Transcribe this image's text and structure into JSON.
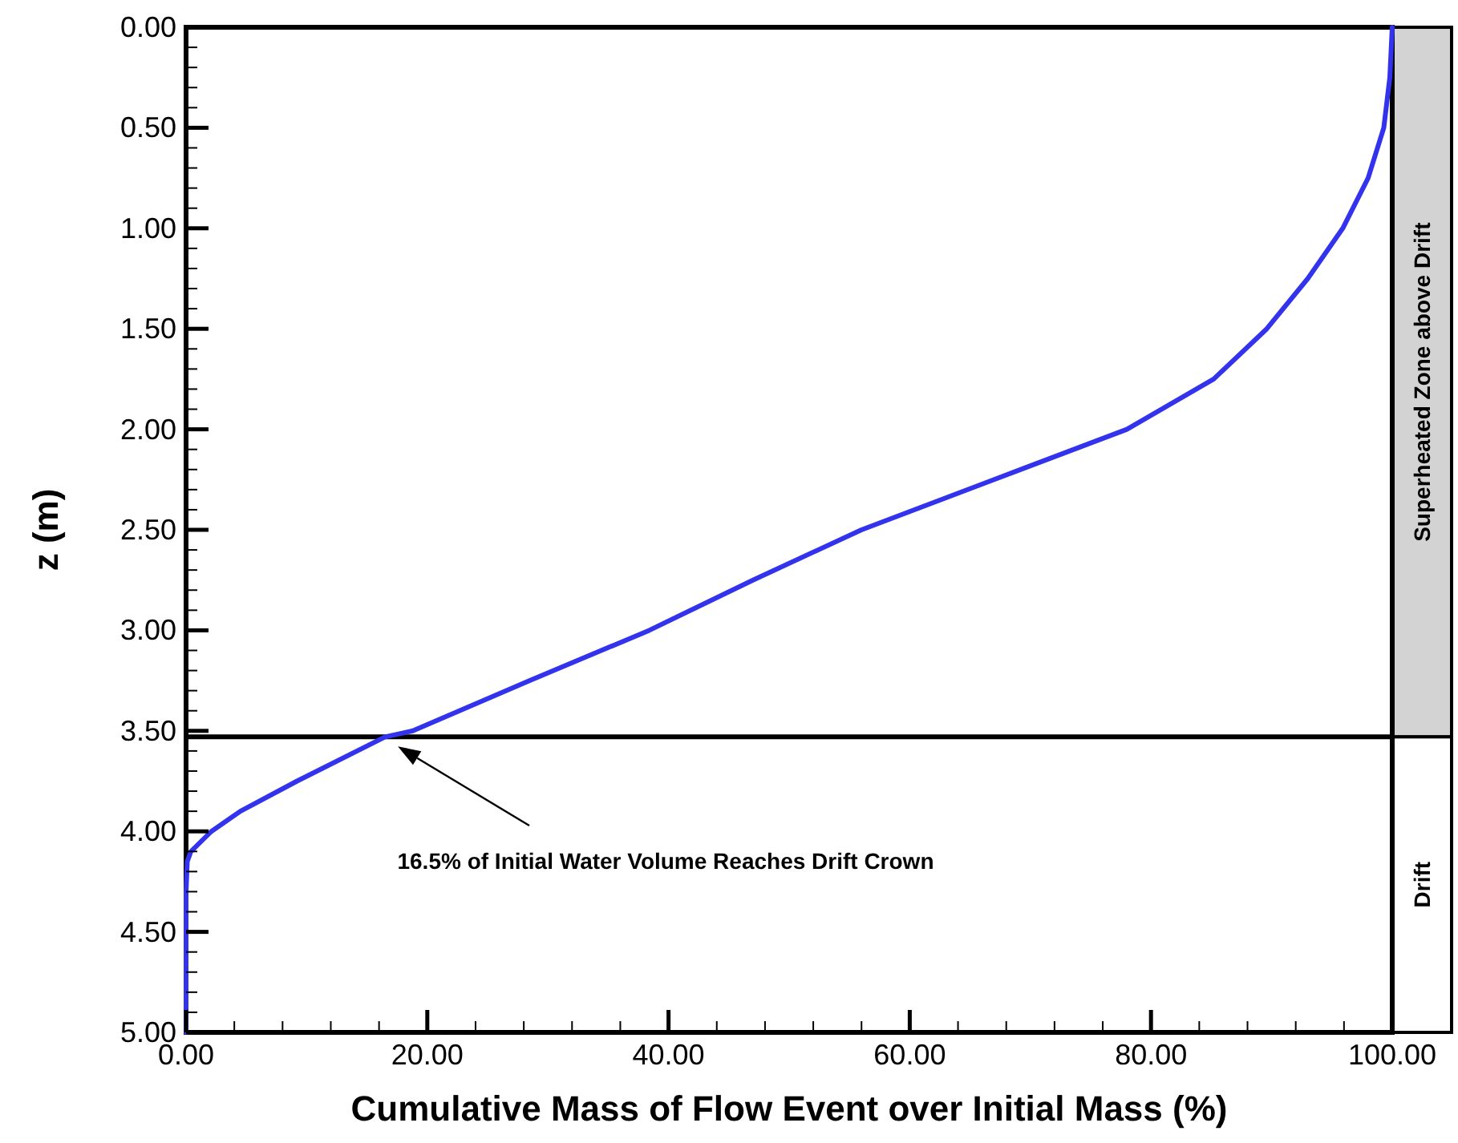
{
  "chart_data": {
    "type": "line",
    "xlabel": "Cumulative Mass of Flow Event over Initial Mass (%)",
    "ylabel": "z (m)",
    "series": [
      {
        "color": "#3333ee",
        "x": [
          100,
          99.8,
          99.3,
          98,
          95.9,
          93,
          89.6,
          85.2,
          78,
          67,
          56,
          47,
          38.4,
          28.5,
          18.8,
          16.5,
          9.2,
          4.5,
          2.1,
          0.4,
          0.1,
          0,
          0
        ],
        "values": [
          0,
          0.25,
          0.5,
          0.75,
          1,
          1.25,
          1.5,
          1.75,
          2,
          2.25,
          2.5,
          2.75,
          3,
          3.25,
          3.5,
          3.53,
          3.75,
          3.9,
          4,
          4.1,
          4.15,
          4.3,
          5
        ]
      }
    ],
    "xlim": [
      0,
      100
    ],
    "ylim": [
      5,
      0
    ],
    "xticks": [
      {
        "value": 0,
        "label": "0.00"
      },
      {
        "value": 4,
        "label": null
      },
      {
        "value": 8,
        "label": null
      },
      {
        "value": 12,
        "label": null
      },
      {
        "value": 16,
        "label": null
      },
      {
        "value": 20,
        "label": "20.00"
      },
      {
        "value": 24,
        "label": null
      },
      {
        "value": 28,
        "label": null
      },
      {
        "value": 32,
        "label": null
      },
      {
        "value": 36,
        "label": null
      },
      {
        "value": 40,
        "label": "40.00"
      },
      {
        "value": 44,
        "label": null
      },
      {
        "value": 48,
        "label": null
      },
      {
        "value": 52,
        "label": null
      },
      {
        "value": 56,
        "label": null
      },
      {
        "value": 60,
        "label": "60.00"
      },
      {
        "value": 64,
        "label": null
      },
      {
        "value": 68,
        "label": null
      },
      {
        "value": 72,
        "label": null
      },
      {
        "value": 76,
        "label": null
      },
      {
        "value": 80,
        "label": "80.00"
      },
      {
        "value": 84,
        "label": null
      },
      {
        "value": 88,
        "label": null
      },
      {
        "value": 92,
        "label": null
      },
      {
        "value": 96,
        "label": null
      },
      {
        "value": 100,
        "label": "100.00"
      }
    ],
    "yticks": [
      {
        "value": 0,
        "label": "0.00"
      },
      {
        "value": 0.1,
        "label": null
      },
      {
        "value": 0.2,
        "label": null
      },
      {
        "value": 0.3,
        "label": null
      },
      {
        "value": 0.4,
        "label": null
      },
      {
        "value": 0.5,
        "label": "0.50"
      },
      {
        "value": 0.6,
        "label": null
      },
      {
        "value": 0.7,
        "label": null
      },
      {
        "value": 0.8,
        "label": null
      },
      {
        "value": 0.9,
        "label": null
      },
      {
        "value": 1,
        "label": "1.00"
      },
      {
        "value": 1.1,
        "label": null
      },
      {
        "value": 1.2,
        "label": null
      },
      {
        "value": 1.3,
        "label": null
      },
      {
        "value": 1.4,
        "label": null
      },
      {
        "value": 1.5,
        "label": "1.50"
      },
      {
        "value": 1.6,
        "label": null
      },
      {
        "value": 1.7,
        "label": null
      },
      {
        "value": 1.8,
        "label": null
      },
      {
        "value": 1.9,
        "label": null
      },
      {
        "value": 2,
        "label": "2.00"
      },
      {
        "value": 2.1,
        "label": null
      },
      {
        "value": 2.2,
        "label": null
      },
      {
        "value": 2.3,
        "label": null
      },
      {
        "value": 2.4,
        "label": null
      },
      {
        "value": 2.5,
        "label": "2.50"
      },
      {
        "value": 2.6,
        "label": null
      },
      {
        "value": 2.7,
        "label": null
      },
      {
        "value": 2.8,
        "label": null
      },
      {
        "value": 2.9,
        "label": null
      },
      {
        "value": 3,
        "label": "3.00"
      },
      {
        "value": 3.1,
        "label": null
      },
      {
        "value": 3.2,
        "label": null
      },
      {
        "value": 3.3,
        "label": null
      },
      {
        "value": 3.4,
        "label": null
      },
      {
        "value": 3.5,
        "label": "3.50"
      },
      {
        "value": 3.6,
        "label": null
      },
      {
        "value": 3.7,
        "label": null
      },
      {
        "value": 3.8,
        "label": null
      },
      {
        "value": 3.9,
        "label": null
      },
      {
        "value": 4,
        "label": "4.00"
      },
      {
        "value": 4.1,
        "label": null
      },
      {
        "value": 4.2,
        "label": null
      },
      {
        "value": 4.3,
        "label": null
      },
      {
        "value": 4.4,
        "label": null
      },
      {
        "value": 4.5,
        "label": "4.50"
      },
      {
        "value": 4.6,
        "label": null
      },
      {
        "value": 4.7,
        "label": null
      },
      {
        "value": 4.8,
        "label": null
      },
      {
        "value": 4.9,
        "label": null
      },
      {
        "value": 5,
        "label": "5.00"
      }
    ],
    "ref_lines": [
      {
        "axis": "y",
        "value": 3.53
      }
    ],
    "annotations": [
      "16.5% of Initial Water Volume Reaches Drift Crown",
      "Superheated Zone above Drift",
      "Drift"
    ]
  }
}
